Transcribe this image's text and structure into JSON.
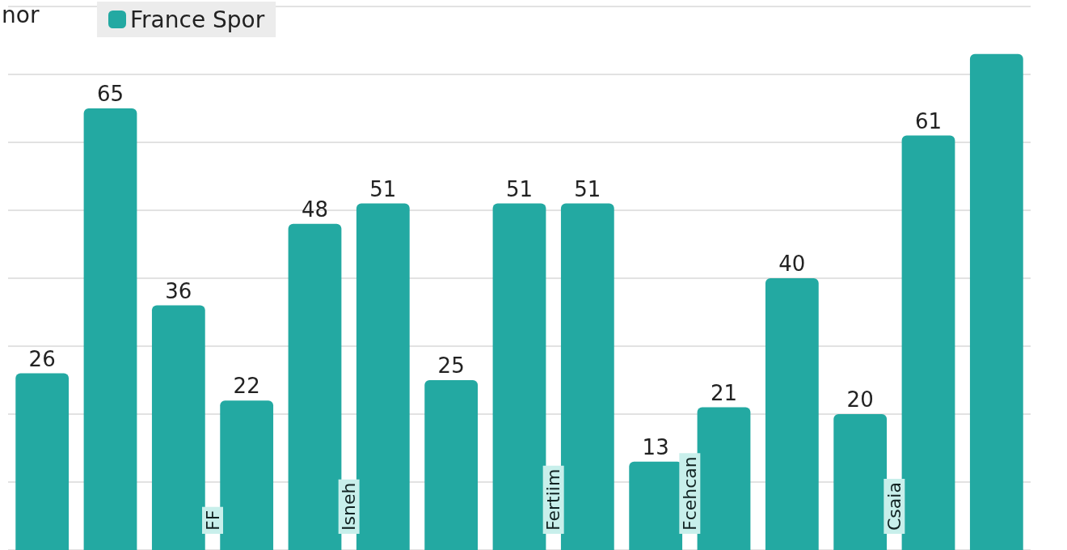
{
  "chart_data": {
    "type": "bar",
    "categories": [
      null,
      null,
      null,
      null,
      null,
      null,
      null,
      null,
      null,
      null,
      null,
      null,
      null,
      null,
      null
    ],
    "series": [
      {
        "name": "France Spor",
        "color": "#23a9a2",
        "values": [
          26,
          65,
          36,
          22,
          48,
          51,
          25,
          51,
          51,
          13,
          21,
          40,
          20,
          61,
          73
        ],
        "value_labels": [
          "26",
          "65",
          "36",
          "22",
          "48",
          "51",
          "25",
          "51",
          "51",
          "13",
          "21",
          "40",
          "20",
          "61",
          null
        ]
      }
    ],
    "annotations": [
      "nor",
      "FF",
      "Isneh",
      "Fertiim",
      "Fcehcan",
      "Csaia"
    ],
    "legend": "top left",
    "grid": "y"
  }
}
